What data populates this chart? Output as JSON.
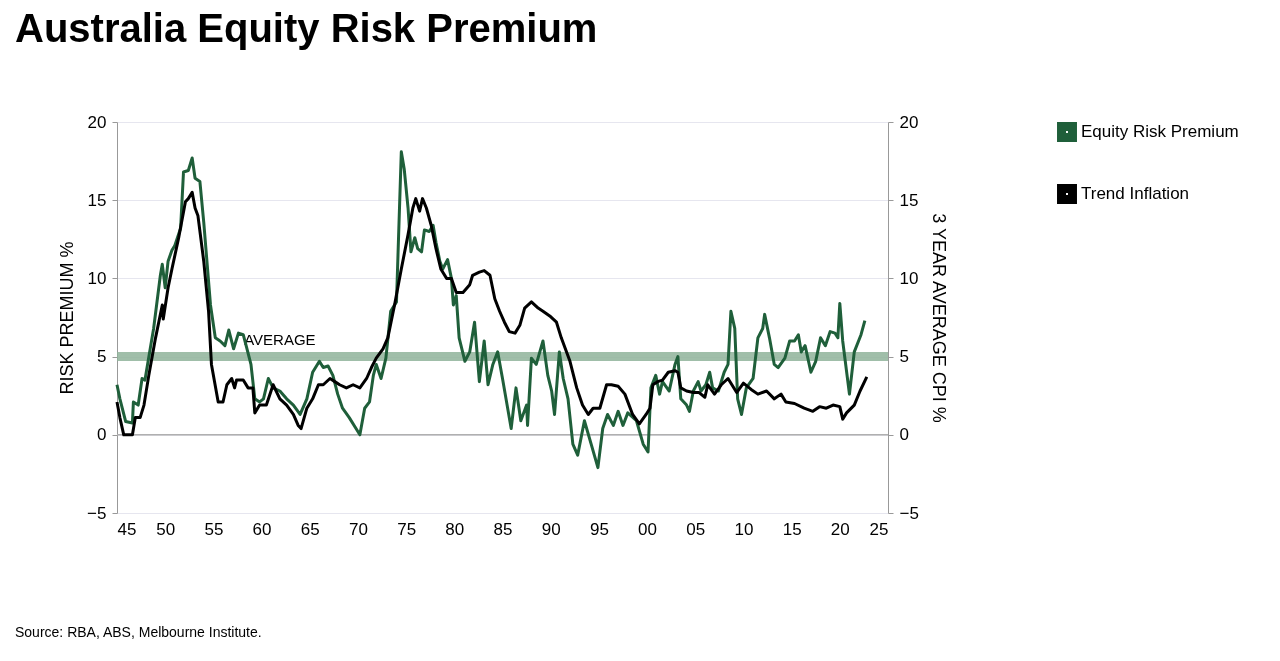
{
  "chart_data": {
    "type": "line",
    "title": "Australia Equity Risk Premium",
    "ylabel": "RISK PREMIUM %",
    "y2label": "3 YEAR AVERAGE CPI %",
    "annotations": [
      "Source:  RBA, ABS, Melbourne Institute."
    ],
    "xlim": [
      1945,
      2025
    ],
    "xticks": [
      {
        "value": 1945,
        "label": "45"
      },
      {
        "value": 1950,
        "label": "50"
      },
      {
        "value": 1955,
        "label": "55"
      },
      {
        "value": 1960,
        "label": "60"
      },
      {
        "value": 1965,
        "label": "65"
      },
      {
        "value": 1970,
        "label": "70"
      },
      {
        "value": 1975,
        "label": "75"
      },
      {
        "value": 1980,
        "label": "80"
      },
      {
        "value": 1985,
        "label": "85"
      },
      {
        "value": 1990,
        "label": "90"
      },
      {
        "value": 1995,
        "label": "95"
      },
      {
        "value": 2000,
        "label": "00"
      },
      {
        "value": 2005,
        "label": "05"
      },
      {
        "value": 2010,
        "label": "10"
      },
      {
        "value": 2015,
        "label": "15"
      },
      {
        "value": 2020,
        "label": "20"
      },
      {
        "value": 2025,
        "label": "25"
      }
    ],
    "ylim": [
      -5,
      20
    ],
    "yticks": [
      -5,
      0,
      5,
      10,
      15,
      20
    ],
    "y2lim": [
      -5,
      20
    ],
    "y2ticks": [
      -5,
      0,
      5,
      10,
      15,
      20
    ],
    "grid": "y",
    "legend": "right",
    "marker": "none",
    "line_style": "solid",
    "ref_lines": [
      {
        "axis": "y",
        "value": 5,
        "label": "AVERAGE",
        "color": "#8fb39a"
      },
      {
        "axis": "y",
        "value": 0,
        "color": "#b0b0b0"
      }
    ],
    "series": [
      {
        "name": "Equity Risk Premium",
        "color": "#1f5f3a",
        "x": [
          1945.0,
          1945.3,
          1945.9,
          1946.6,
          1946.7,
          1947.2,
          1947.6,
          1947.9,
          1948.8,
          1949.5,
          1949.7,
          1950.0,
          1950.3,
          1950.7,
          1951.0,
          1951.6,
          1951.9,
          1952.4,
          1952.8,
          1953.1,
          1953.6,
          1954.0,
          1954.7,
          1955.2,
          1955.7,
          1956.2,
          1956.6,
          1957.1,
          1957.6,
          1958.1,
          1958.4,
          1958.9,
          1959.3,
          1959.8,
          1960.2,
          1960.7,
          1961.2,
          1961.9,
          1962.6,
          1963.3,
          1964.0,
          1964.7,
          1965.3,
          1966.0,
          1966.4,
          1966.9,
          1967.4,
          1967.9,
          1968.4,
          1969.1,
          1969.8,
          1970.2,
          1970.7,
          1971.2,
          1971.6,
          1971.9,
          1972.4,
          1972.9,
          1973.4,
          1974.0,
          1974.5,
          1974.8,
          1975.2,
          1975.5,
          1975.9,
          1976.2,
          1976.6,
          1976.9,
          1977.4,
          1977.8,
          1978.1,
          1978.5,
          1978.8,
          1979.3,
          1979.7,
          1979.9,
          1980.2,
          1980.5,
          1981.1,
          1981.6,
          1982.1,
          1982.6,
          1983.1,
          1983.5,
          1984.0,
          1984.5,
          1985.0,
          1985.9,
          1986.4,
          1986.9,
          1987.5,
          1987.6,
          1988.0,
          1988.5,
          1989.2,
          1989.7,
          1990.1,
          1990.4,
          1990.9,
          1991.3,
          1991.8,
          1992.3,
          1992.8,
          1993.5,
          1994.2,
          1994.9,
          1995.4,
          1995.9,
          1996.5,
          1997.0,
          1997.5,
          1998.0,
          1998.9,
          1999.6,
          2000.1,
          2000.4,
          2000.9,
          2001.3,
          2001.6,
          2002.3,
          2002.9,
          2003.2,
          2003.5,
          2004.1,
          2004.4,
          2004.8,
          2005.3,
          2005.6,
          2006.1,
          2006.5,
          2006.8,
          2007.4,
          2008.0,
          2008.4,
          2008.7,
          2009.1,
          2009.4,
          2009.8,
          2010.3,
          2011.0,
          2011.5,
          2012.0,
          2012.2,
          2012.7,
          2013.2,
          2013.6,
          2014.3,
          2014.8,
          2015.3,
          2015.7,
          2016.0,
          2016.4,
          2017.0,
          2017.5,
          2018.0,
          2018.5,
          2019.0,
          2019.5,
          2019.8,
          2020.0,
          2020.3,
          2021.0,
          2021.5,
          2022.2,
          2022.6
        ],
        "values": [
          3.2,
          2.3,
          0.85,
          0.75,
          2.1,
          1.9,
          3.6,
          3.5,
          6.8,
          10.2,
          10.9,
          9.4,
          11.1,
          11.8,
          12.1,
          13.2,
          16.8,
          16.9,
          17.7,
          16.4,
          16.2,
          13.6,
          8.3,
          6.2,
          6.0,
          5.7,
          6.7,
          5.5,
          6.5,
          6.4,
          5.7,
          4.5,
          2.3,
          2.1,
          2.3,
          3.6,
          3.0,
          2.8,
          2.3,
          1.9,
          1.3,
          2.3,
          4.0,
          4.7,
          4.3,
          4.4,
          3.8,
          2.6,
          1.7,
          1.1,
          0.4,
          0.0,
          1.7,
          2.1,
          3.8,
          4.5,
          3.6,
          4.9,
          7.9,
          8.5,
          18.1,
          17.0,
          14.5,
          11.7,
          12.6,
          11.9,
          11.7,
          13.1,
          13.0,
          13.4,
          12.3,
          11.1,
          10.6,
          11.2,
          10.0,
          8.3,
          8.9,
          6.2,
          4.7,
          5.3,
          7.2,
          3.4,
          6.0,
          3.2,
          4.5,
          5.3,
          3.6,
          0.4,
          3.0,
          0.9,
          1.9,
          0.6,
          4.9,
          4.5,
          6.0,
          3.8,
          2.8,
          1.3,
          5.3,
          3.6,
          2.3,
          -0.6,
          -1.3,
          0.9,
          -0.6,
          -2.1,
          0.4,
          1.3,
          0.6,
          1.5,
          0.6,
          1.4,
          0.9,
          -0.6,
          -1.1,
          3.0,
          3.8,
          2.6,
          3.4,
          2.8,
          4.5,
          5.0,
          2.3,
          1.9,
          1.5,
          2.8,
          3.4,
          2.8,
          3.2,
          4.0,
          3.0,
          2.8,
          4.0,
          4.5,
          7.9,
          6.8,
          2.3,
          1.3,
          3.0,
          3.6,
          6.2,
          6.8,
          7.7,
          6.2,
          4.5,
          4.3,
          4.9,
          6.0,
          6.0,
          6.4,
          5.3,
          5.7,
          4.0,
          4.7,
          6.2,
          5.7,
          6.6,
          6.5,
          6.2,
          8.4,
          6.0,
          2.6,
          5.3,
          6.4,
          7.3
        ]
      },
      {
        "name": "Trend Inflation",
        "color": "#000000",
        "axis": "y2",
        "x": [
          1945.0,
          1945.3,
          1945.7,
          1946.6,
          1946.9,
          1947.4,
          1947.8,
          1948.3,
          1949.0,
          1949.7,
          1949.8,
          1950.3,
          1950.7,
          1951.4,
          1952.1,
          1952.4,
          1952.8,
          1953.1,
          1953.4,
          1954.0,
          1954.5,
          1954.8,
          1955.5,
          1956.0,
          1956.4,
          1956.9,
          1957.2,
          1957.4,
          1958.1,
          1958.6,
          1959.1,
          1959.3,
          1959.8,
          1960.5,
          1961.2,
          1961.9,
          1962.6,
          1963.3,
          1963.8,
          1964.1,
          1964.7,
          1965.3,
          1965.9,
          1966.4,
          1967.1,
          1967.6,
          1968.1,
          1968.8,
          1969.5,
          1970.2,
          1970.9,
          1971.4,
          1971.9,
          1972.6,
          1973.1,
          1973.8,
          1974.5,
          1975.2,
          1975.7,
          1976.0,
          1976.4,
          1976.7,
          1977.1,
          1977.6,
          1978.1,
          1978.6,
          1979.2,
          1979.7,
          1980.2,
          1980.9,
          1981.6,
          1981.9,
          1982.6,
          1983.1,
          1983.7,
          1984.2,
          1984.7,
          1985.2,
          1985.7,
          1986.3,
          1986.8,
          1987.3,
          1988.0,
          1988.7,
          1989.2,
          1989.9,
          1990.6,
          1991.1,
          1992.0,
          1992.7,
          1993.3,
          1993.9,
          1994.4,
          1995.1,
          1995.8,
          1996.3,
          1997.0,
          1997.7,
          1998.5,
          1999.2,
          1999.9,
          2000.3,
          2000.6,
          2001.1,
          2001.6,
          2002.2,
          2002.9,
          2003.2,
          2003.5,
          2004.1,
          2004.8,
          2005.4,
          2006.0,
          2006.3,
          2007.0,
          2007.7,
          2008.4,
          2009.3,
          2010.0,
          2010.8,
          2011.5,
          2012.4,
          2013.2,
          2013.9,
          2014.4,
          2015.3,
          2016.3,
          2017.2,
          2017.9,
          2018.6,
          2019.3,
          2020.0,
          2020.3,
          2020.7,
          2021.5,
          2022.1,
          2022.8
        ],
        "values": [
          2.1,
          1.1,
          0.0,
          0.0,
          1.1,
          1.1,
          1.9,
          3.8,
          6.2,
          8.3,
          7.4,
          9.4,
          10.6,
          12.6,
          14.9,
          15.1,
          15.5,
          14.5,
          14.0,
          11.1,
          7.9,
          4.5,
          2.1,
          2.1,
          3.2,
          3.6,
          3.0,
          3.5,
          3.5,
          3.0,
          3.0,
          1.4,
          1.9,
          1.9,
          3.2,
          2.3,
          1.9,
          1.3,
          0.6,
          0.4,
          1.7,
          2.3,
          3.2,
          3.2,
          3.6,
          3.4,
          3.2,
          3.0,
          3.2,
          3.0,
          3.6,
          4.3,
          4.9,
          5.5,
          6.2,
          8.3,
          10.6,
          12.8,
          14.5,
          15.1,
          14.3,
          15.1,
          14.5,
          13.4,
          11.9,
          10.6,
          10.0,
          10.0,
          9.1,
          9.1,
          9.6,
          10.2,
          10.4,
          10.5,
          10.2,
          8.7,
          7.9,
          7.2,
          6.6,
          6.5,
          7.0,
          8.1,
          8.5,
          8.1,
          7.9,
          7.6,
          7.2,
          6.2,
          4.7,
          3.0,
          1.9,
          1.3,
          1.7,
          1.7,
          3.2,
          3.2,
          3.1,
          2.6,
          1.3,
          0.7,
          1.3,
          1.7,
          3.2,
          3.4,
          3.5,
          4.0,
          4.1,
          4.0,
          3.0,
          2.8,
          2.7,
          2.7,
          2.4,
          3.2,
          2.6,
          3.2,
          3.6,
          2.7,
          3.3,
          2.9,
          2.6,
          2.8,
          2.3,
          2.6,
          2.1,
          2.0,
          1.7,
          1.5,
          1.8,
          1.7,
          1.9,
          1.8,
          1.0,
          1.4,
          1.9,
          2.8,
          3.7
        ]
      }
    ]
  }
}
